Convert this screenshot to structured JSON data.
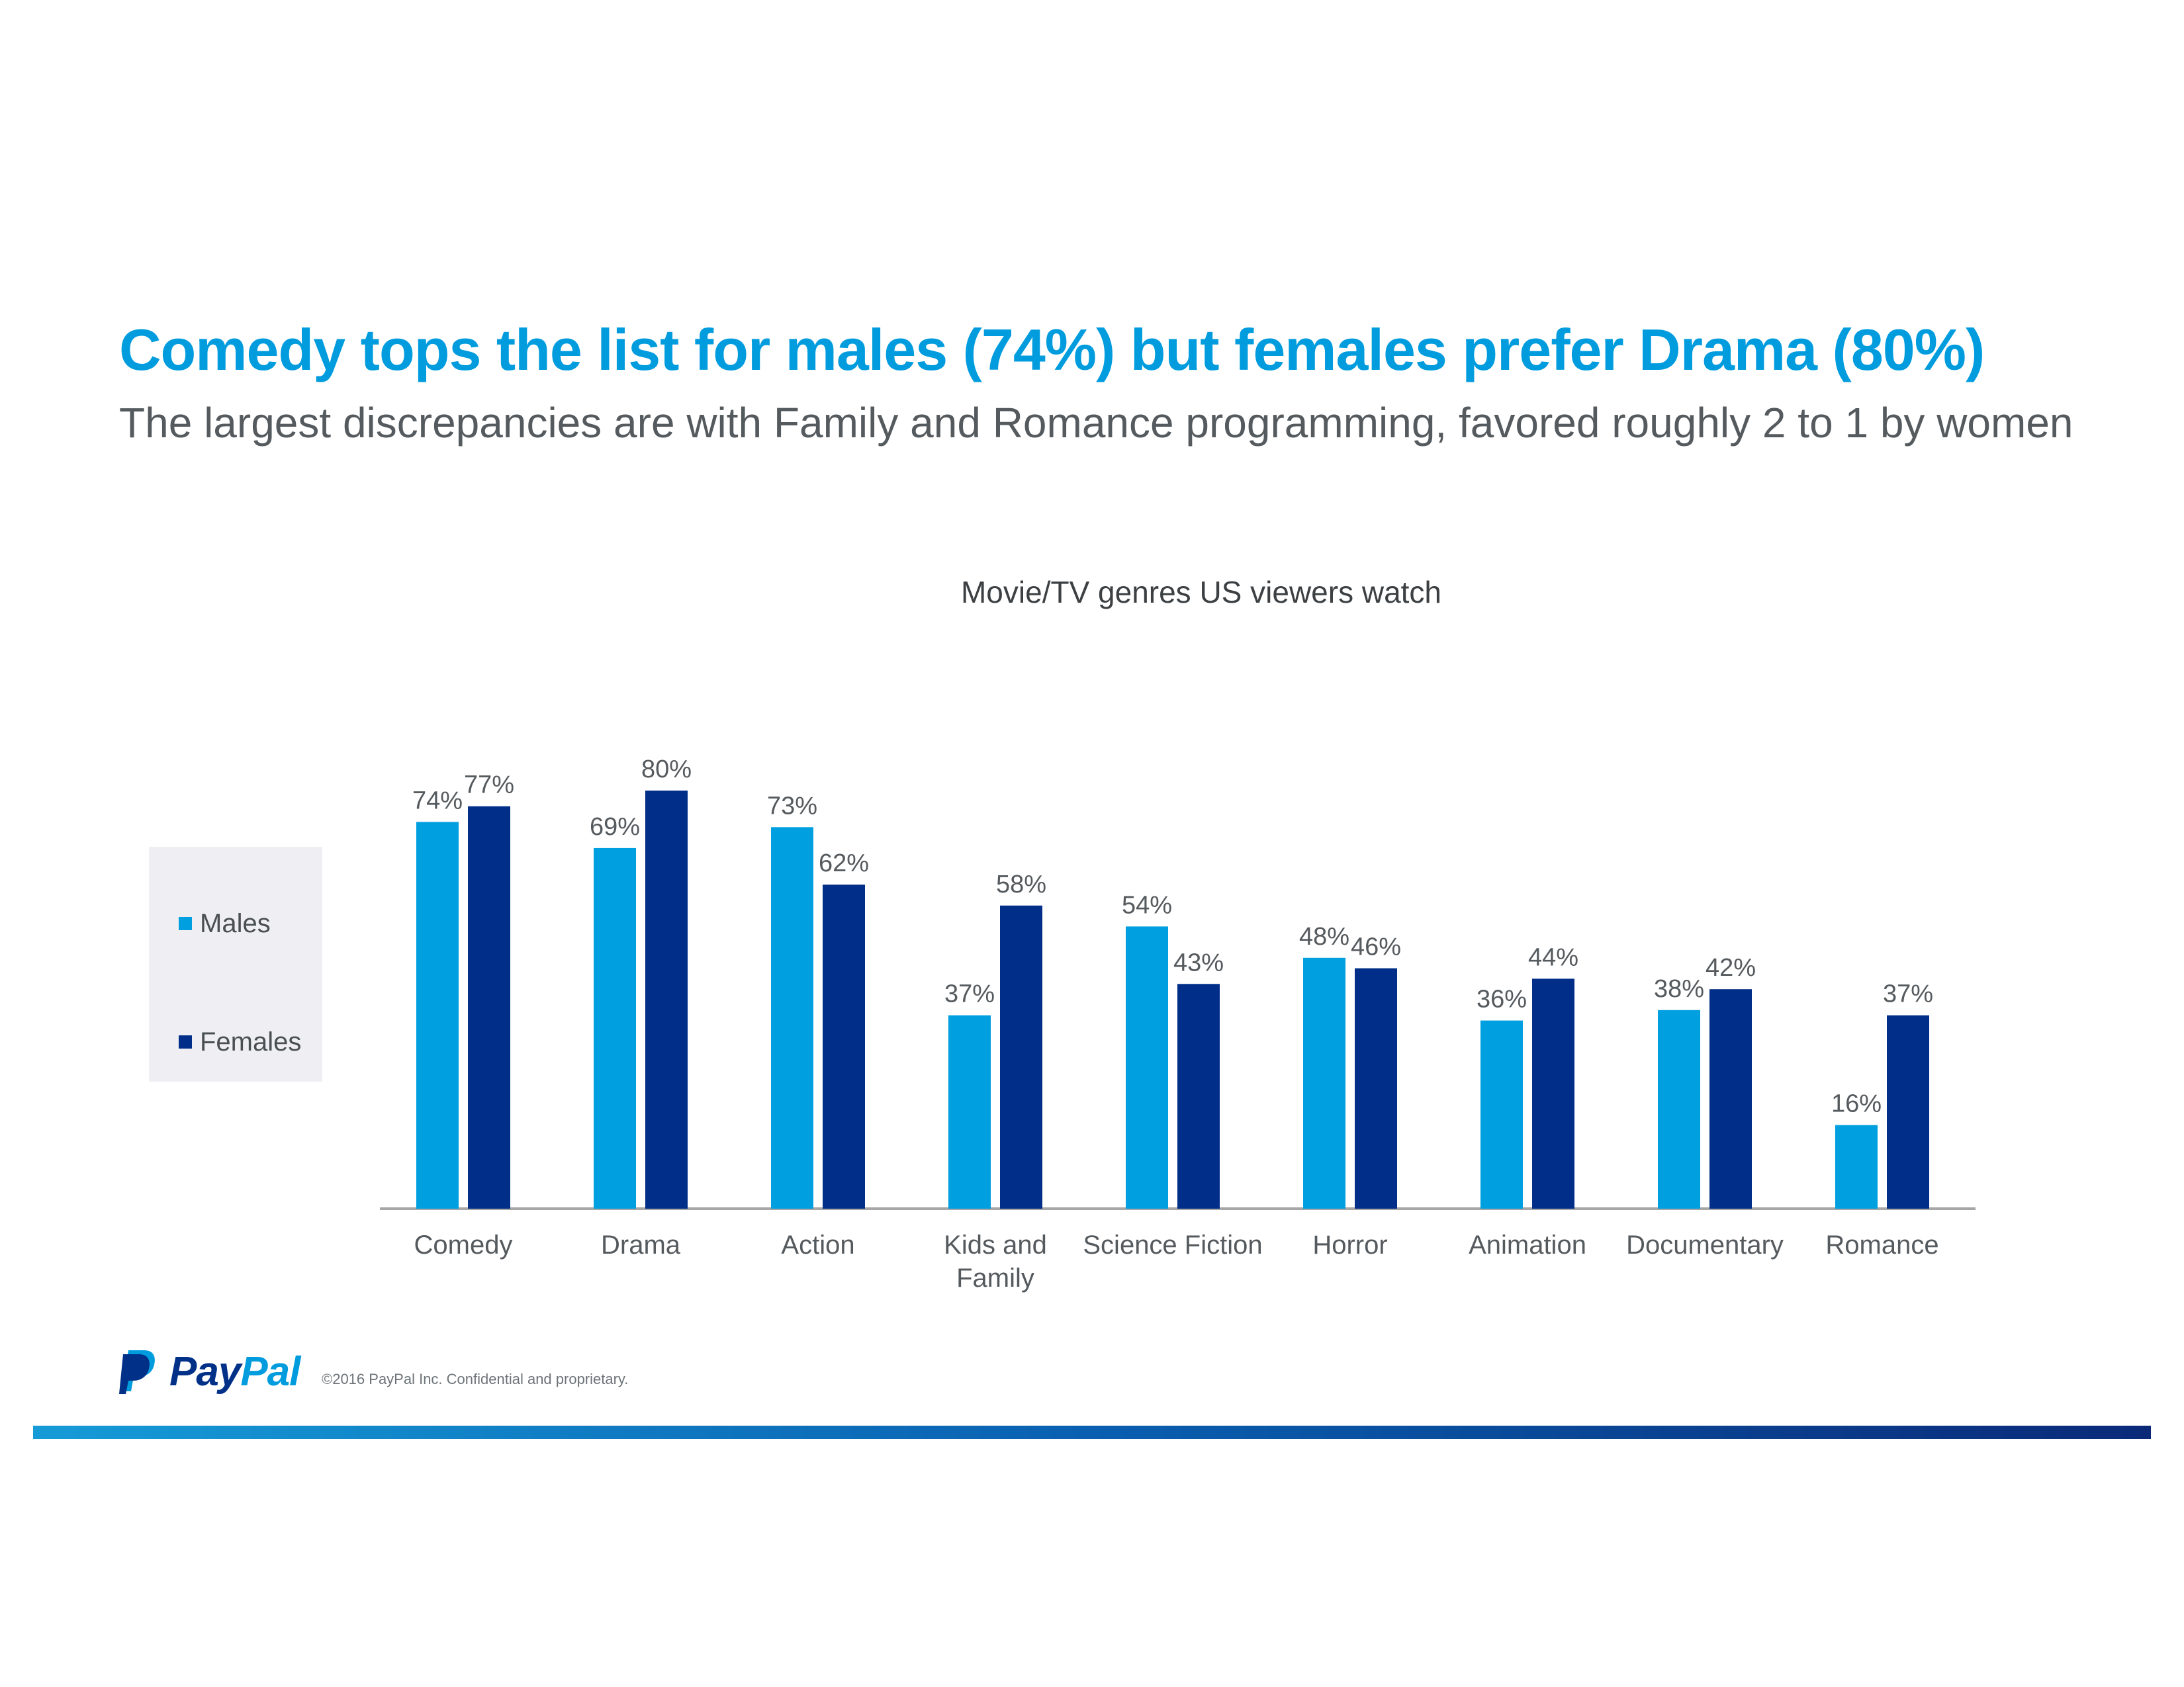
{
  "headline": "Comedy tops the list for males (74%) but females prefer Drama (80%)",
  "subheadline": "The largest discrepancies  are with  Family  and Romance  programming,  favored  roughly  2 to 1 by women",
  "legend": {
    "items": [
      {
        "label": "Males",
        "color": "#009fdf"
      },
      {
        "label": "Females",
        "color": "#012e88"
      }
    ]
  },
  "chart_data": {
    "type": "bar",
    "title": "Movie/TV genres US viewers watch",
    "xlabel": "",
    "ylabel": "",
    "ylim": [
      0,
      100
    ],
    "grid": false,
    "legend_position": "left",
    "categories": [
      [
        "Comedy"
      ],
      [
        "Drama"
      ],
      [
        "Action"
      ],
      [
        "Kids and",
        "Family"
      ],
      [
        "Science Fiction"
      ],
      [
        "Horror"
      ],
      [
        "Animation"
      ],
      [
        "Documentary"
      ],
      [
        "Romance"
      ]
    ],
    "series": [
      {
        "name": "Males",
        "color": "#009fdf",
        "values": [
          74,
          69,
          73,
          37,
          54,
          48,
          36,
          38,
          16
        ],
        "labels": [
          "74%",
          "69%",
          "73%",
          "37%",
          "54%",
          "48%",
          "36%",
          "38%",
          "16%"
        ]
      },
      {
        "name": "Females",
        "color": "#012e88",
        "values": [
          77,
          80,
          62,
          58,
          43,
          46,
          44,
          42,
          37
        ],
        "labels": [
          "77%",
          "80%",
          "62%",
          "58%",
          "43%",
          "46%",
          "44%",
          "42%",
          "37%"
        ]
      }
    ]
  },
  "footer": {
    "logo_text_pay": "Pay",
    "logo_text_pal": "Pal",
    "copyright": "©2016  PayPal Inc. Confidential    and  proprietary."
  },
  "colors": {
    "title": "#009cde",
    "subtitle": "#555a5e",
    "axis": "#a6a6a6",
    "label_text": "#555a5e",
    "legend_bg": "#efeff3",
    "brand_dark": "#003087",
    "brand_light": "#009cde"
  },
  "icons": {
    "logo": "paypal-logo-icon"
  }
}
